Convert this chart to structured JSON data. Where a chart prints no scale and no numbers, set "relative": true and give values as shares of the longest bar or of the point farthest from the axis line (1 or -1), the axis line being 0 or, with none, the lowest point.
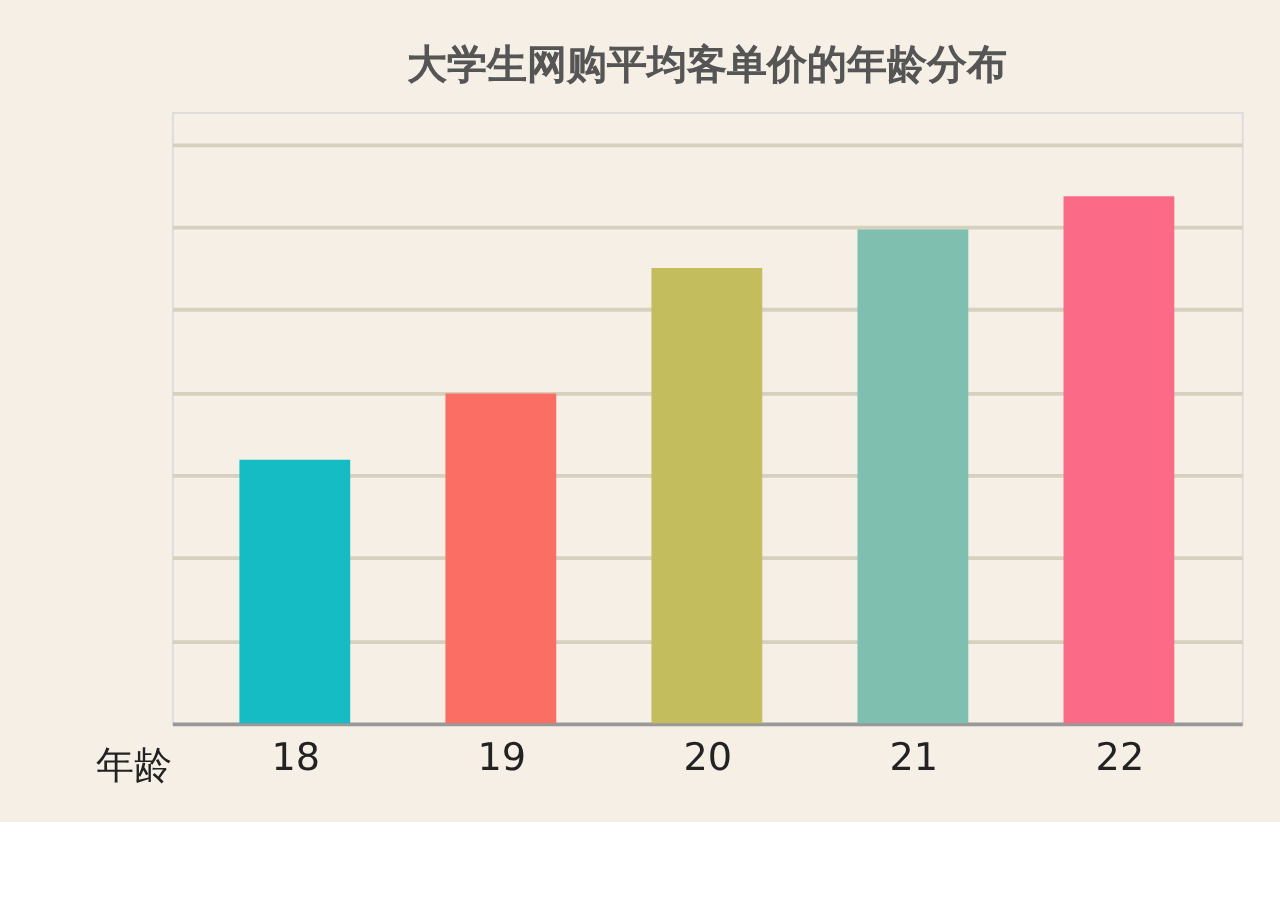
{
  "chart_data": {
    "type": "bar",
    "title": "大学生网购平均客单价的年龄分布",
    "xlabel": "年龄",
    "categories": [
      "18",
      "19",
      "20",
      "21",
      "22"
    ],
    "values": [
      0.5,
      0.626,
      0.864,
      0.937,
      1
    ],
    "colors": [
      "#16bcc4",
      "#fb6e64",
      "#c4bd5e",
      "#7fbfb0",
      "#fb6b87"
    ],
    "relative": true,
    "grid": "y"
  }
}
